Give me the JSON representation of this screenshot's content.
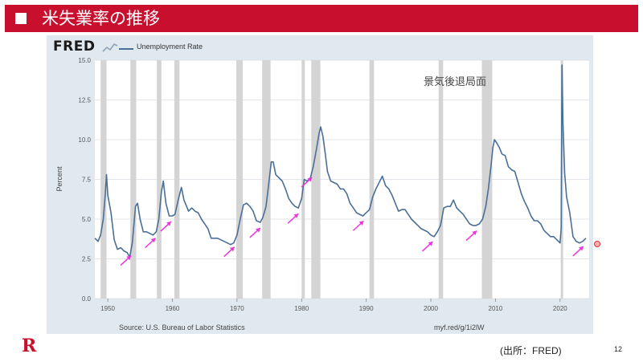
{
  "header": {
    "title": "米失業率の推移"
  },
  "chart_source": {
    "logo": "FRED",
    "legend_label": "Unemployment Rate",
    "source_text": "Source: U.S. Bureau of Labor Statistics",
    "link_text": "myf.red/g/1i2lW"
  },
  "annotation": {
    "recession_label": "景気後退局面"
  },
  "footer": {
    "brand": "R",
    "credit": "(出所：FRED)",
    "page_number": "12"
  },
  "colors": {
    "header_bg": "#c8102e",
    "line": "#4a6f97",
    "recession_band": "#d4d4d4",
    "arrow": "#ee33dd",
    "plot_bg": "#ffffff",
    "frame_bg": "#e1e9f0"
  },
  "chart_data": {
    "type": "line",
    "title": "",
    "xlabel": "",
    "ylabel": "Percent",
    "xlim": [
      1948,
      2024.5
    ],
    "ylim": [
      0,
      15
    ],
    "x_ticks": [
      1950,
      1960,
      1970,
      1980,
      1990,
      2000,
      2010,
      2020
    ],
    "y_ticks": [
      "0.0",
      "2.5",
      "5.0",
      "7.5",
      "10.0",
      "12.5",
      "15.0"
    ],
    "grid": true,
    "legend": "top-left",
    "series": [
      {
        "name": "Unemployment Rate",
        "points": [
          [
            1948.0,
            3.8
          ],
          [
            1948.5,
            3.6
          ],
          [
            1948.9,
            4.0
          ],
          [
            1949.3,
            5.0
          ],
          [
            1949.6,
            6.5
          ],
          [
            1949.8,
            7.8
          ],
          [
            1950.0,
            6.5
          ],
          [
            1950.5,
            5.4
          ],
          [
            1951.0,
            3.7
          ],
          [
            1951.5,
            3.1
          ],
          [
            1952.0,
            3.2
          ],
          [
            1952.5,
            3.0
          ],
          [
            1953.0,
            2.9
          ],
          [
            1953.4,
            2.6
          ],
          [
            1953.8,
            3.5
          ],
          [
            1954.3,
            5.8
          ],
          [
            1954.6,
            6.0
          ],
          [
            1955.0,
            5.0
          ],
          [
            1955.5,
            4.2
          ],
          [
            1956.0,
            4.2
          ],
          [
            1956.5,
            4.1
          ],
          [
            1957.0,
            4.0
          ],
          [
            1957.5,
            4.2
          ],
          [
            1957.9,
            5.0
          ],
          [
            1958.3,
            6.7
          ],
          [
            1958.6,
            7.4
          ],
          [
            1959.0,
            6.0
          ],
          [
            1959.5,
            5.2
          ],
          [
            1960.0,
            5.2
          ],
          [
            1960.4,
            5.3
          ],
          [
            1960.9,
            6.2
          ],
          [
            1961.4,
            7.0
          ],
          [
            1961.8,
            6.2
          ],
          [
            1962.5,
            5.5
          ],
          [
            1963.0,
            5.7
          ],
          [
            1963.5,
            5.5
          ],
          [
            1964.0,
            5.4
          ],
          [
            1964.5,
            5.0
          ],
          [
            1965.0,
            4.7
          ],
          [
            1965.5,
            4.4
          ],
          [
            1966.0,
            3.8
          ],
          [
            1967.0,
            3.8
          ],
          [
            1968.0,
            3.6
          ],
          [
            1969.0,
            3.4
          ],
          [
            1969.5,
            3.5
          ],
          [
            1970.0,
            4.0
          ],
          [
            1970.5,
            5.0
          ],
          [
            1971.0,
            5.9
          ],
          [
            1971.5,
            6.0
          ],
          [
            1972.0,
            5.8
          ],
          [
            1972.5,
            5.5
          ],
          [
            1973.0,
            4.9
          ],
          [
            1973.6,
            4.8
          ],
          [
            1974.0,
            5.1
          ],
          [
            1974.5,
            5.8
          ],
          [
            1974.9,
            7.2
          ],
          [
            1975.3,
            8.6
          ],
          [
            1975.6,
            8.6
          ],
          [
            1976.0,
            7.8
          ],
          [
            1976.5,
            7.6
          ],
          [
            1977.0,
            7.4
          ],
          [
            1977.5,
            6.9
          ],
          [
            1978.0,
            6.3
          ],
          [
            1978.5,
            6.0
          ],
          [
            1979.0,
            5.8
          ],
          [
            1979.5,
            5.7
          ],
          [
            1980.0,
            6.3
          ],
          [
            1980.4,
            7.5
          ],
          [
            1980.8,
            7.4
          ],
          [
            1981.3,
            7.5
          ],
          [
            1981.8,
            8.3
          ],
          [
            1982.3,
            9.4
          ],
          [
            1982.7,
            10.4
          ],
          [
            1982.95,
            10.8
          ],
          [
            1983.3,
            10.2
          ],
          [
            1983.7,
            9.0
          ],
          [
            1984.0,
            8.0
          ],
          [
            1984.5,
            7.4
          ],
          [
            1985.0,
            7.3
          ],
          [
            1985.5,
            7.2
          ],
          [
            1986.0,
            6.9
          ],
          [
            1986.5,
            6.9
          ],
          [
            1987.0,
            6.6
          ],
          [
            1987.5,
            6.0
          ],
          [
            1988.0,
            5.7
          ],
          [
            1988.5,
            5.4
          ],
          [
            1989.0,
            5.3
          ],
          [
            1989.5,
            5.2
          ],
          [
            1990.0,
            5.4
          ],
          [
            1990.5,
            5.6
          ],
          [
            1991.0,
            6.4
          ],
          [
            1991.5,
            6.9
          ],
          [
            1992.0,
            7.3
          ],
          [
            1992.5,
            7.7
          ],
          [
            1993.0,
            7.1
          ],
          [
            1993.5,
            6.9
          ],
          [
            1994.0,
            6.5
          ],
          [
            1994.5,
            6.0
          ],
          [
            1995.0,
            5.5
          ],
          [
            1995.5,
            5.6
          ],
          [
            1996.0,
            5.6
          ],
          [
            1996.5,
            5.3
          ],
          [
            1997.0,
            5.0
          ],
          [
            1997.5,
            4.8
          ],
          [
            1998.0,
            4.6
          ],
          [
            1998.5,
            4.4
          ],
          [
            1999.0,
            4.3
          ],
          [
            1999.5,
            4.2
          ],
          [
            2000.0,
            4.0
          ],
          [
            2000.5,
            3.9
          ],
          [
            2001.0,
            4.2
          ],
          [
            2001.5,
            4.6
          ],
          [
            2002.0,
            5.7
          ],
          [
            2002.5,
            5.8
          ],
          [
            2003.0,
            5.8
          ],
          [
            2003.5,
            6.2
          ],
          [
            2004.0,
            5.7
          ],
          [
            2004.5,
            5.5
          ],
          [
            2005.0,
            5.3
          ],
          [
            2005.5,
            5.0
          ],
          [
            2006.0,
            4.7
          ],
          [
            2006.5,
            4.6
          ],
          [
            2007.0,
            4.6
          ],
          [
            2007.5,
            4.7
          ],
          [
            2008.0,
            5.0
          ],
          [
            2008.5,
            5.8
          ],
          [
            2008.9,
            6.9
          ],
          [
            2009.3,
            8.3
          ],
          [
            2009.6,
            9.5
          ],
          [
            2009.85,
            10.0
          ],
          [
            2010.2,
            9.8
          ],
          [
            2010.6,
            9.5
          ],
          [
            2011.0,
            9.1
          ],
          [
            2011.5,
            9.0
          ],
          [
            2012.0,
            8.3
          ],
          [
            2012.5,
            8.1
          ],
          [
            2013.0,
            8.0
          ],
          [
            2013.5,
            7.3
          ],
          [
            2014.0,
            6.6
          ],
          [
            2014.5,
            6.1
          ],
          [
            2015.0,
            5.7
          ],
          [
            2015.5,
            5.2
          ],
          [
            2016.0,
            4.9
          ],
          [
            2016.5,
            4.9
          ],
          [
            2017.0,
            4.7
          ],
          [
            2017.5,
            4.3
          ],
          [
            2018.0,
            4.1
          ],
          [
            2018.5,
            3.9
          ],
          [
            2019.0,
            3.9
          ],
          [
            2019.5,
            3.7
          ],
          [
            2020.0,
            3.5
          ],
          [
            2020.17,
            4.4
          ],
          [
            2020.29,
            14.7
          ],
          [
            2020.45,
            11.1
          ],
          [
            2020.7,
            7.9
          ],
          [
            2021.0,
            6.4
          ],
          [
            2021.5,
            5.4
          ],
          [
            2022.0,
            3.9
          ],
          [
            2022.5,
            3.6
          ],
          [
            2023.0,
            3.5
          ],
          [
            2023.5,
            3.6
          ],
          [
            2024.0,
            3.8
          ]
        ]
      }
    ],
    "recessions": [
      [
        1948.9,
        1949.8
      ],
      [
        1953.5,
        1954.4
      ],
      [
        1957.6,
        1958.3
      ],
      [
        1960.3,
        1961.1
      ],
      [
        1969.9,
        1970.9
      ],
      [
        1973.9,
        1975.2
      ],
      [
        1980.0,
        1980.5
      ],
      [
        1981.5,
        1982.9
      ],
      [
        1990.5,
        1991.2
      ],
      [
        2001.2,
        2001.9
      ],
      [
        2007.9,
        2009.5
      ],
      [
        2020.1,
        2020.3
      ]
    ],
    "trough_arrows": [
      1953.6,
      1957.4,
      1959.8,
      1969.6,
      1973.6,
      1979.5,
      1981.6,
      1989.6,
      2000.3,
      2007.1,
      2023.6
    ]
  }
}
